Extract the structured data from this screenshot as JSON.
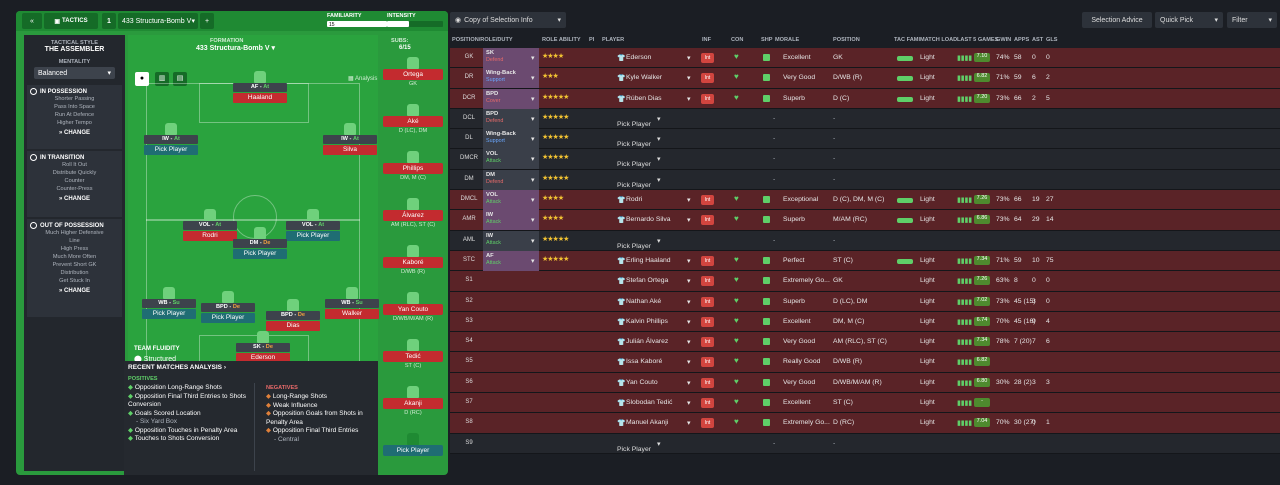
{
  "header": {
    "back": "«",
    "tab": "TACTICS",
    "slot": "1",
    "tactic_name": "433 Structura-Bomb V",
    "add": "+",
    "familiarity": "FAMILIARITY",
    "intensity": "INTENSITY",
    "fam_val": "15"
  },
  "style": {
    "title": "TACTICAL STYLE",
    "name": "THE ASSEMBLER",
    "mentality_label": "MENTALITY",
    "mentality": "Balanced"
  },
  "possession": {
    "title": "IN POSSESSION",
    "items": [
      "Shorter Passing",
      "Pass Into Space",
      "Run At Defence",
      "Higher Tempo"
    ],
    "change": "CHANGE"
  },
  "transition": {
    "title": "IN TRANSITION",
    "items": [
      "Roll It Out",
      "Distribute Quickly",
      "Counter",
      "Counter-Press"
    ],
    "change": "CHANGE"
  },
  "out": {
    "title": "OUT OF POSSESSION",
    "items": [
      "Much Higher Defensive",
      "Line",
      "High Press",
      "Much More Often",
      "Prevent Short GK",
      "Distribution",
      "Get Stuck In"
    ],
    "change": "CHANGE"
  },
  "formation": {
    "label": "FORMATION",
    "name": "433 Structura-Bomb V",
    "subs_label": "SUBS:",
    "subs": "6/15",
    "analysis": "Analysis"
  },
  "pitch": [
    {
      "role": "AF",
      "duty": "At",
      "name": "Haaland",
      "pick": false
    },
    {
      "role": "IW",
      "duty": "At",
      "name": "Pick Player",
      "pick": true
    },
    {
      "role": "IW",
      "duty": "At",
      "name": "Silva",
      "pick": false
    },
    {
      "role": "VOL",
      "duty": "At",
      "name": "Rodri",
      "pick": false
    },
    {
      "role": "VOL",
      "duty": "At",
      "name": "Pick Player",
      "pick": true
    },
    {
      "role": "DM",
      "duty": "De",
      "name": "Pick Player",
      "pick": true
    },
    {
      "role": "WB",
      "duty": "Su",
      "name": "Pick Player",
      "pick": true
    },
    {
      "role": "BPD",
      "duty": "De",
      "name": "Pick Player",
      "pick": true
    },
    {
      "role": "BPD",
      "duty": "De",
      "name": "Dias",
      "pick": false
    },
    {
      "role": "WB",
      "duty": "Su",
      "name": "Walker",
      "pick": false
    },
    {
      "role": "SK",
      "duty": "De",
      "name": "Ederson",
      "pick": false
    }
  ],
  "subs": [
    {
      "name": "Ortega",
      "pos": "GK"
    },
    {
      "name": "Aké",
      "pos": "D (LC), DM"
    },
    {
      "name": "Phillips",
      "pos": "DM, M (C)"
    },
    {
      "name": "Álvarez",
      "pos": "AM (RLC), ST (C)"
    },
    {
      "name": "Kaboré",
      "pos": "D/WB (R)"
    },
    {
      "name": "Yan Couto",
      "pos": "D/WB/M/AM (R)"
    },
    {
      "name": "Tedić",
      "pos": "ST (C)"
    },
    {
      "name": "Akanji",
      "pos": "D (RC)"
    },
    {
      "name": "Pick Player",
      "pos": ""
    }
  ],
  "fluidity": {
    "label": "TEAM FLUIDITY",
    "value": "Structured"
  },
  "analysis": {
    "title": "RECENT MATCHES ANALYSIS",
    "positives": "POSITIVES",
    "negatives": "NEGATIVES",
    "pos": [
      "Opposition Long-Range Shots",
      "Opposition Final Third Entries to Shots Conversion",
      "Goals Scored Location",
      "- Six Yard Box",
      "Opposition Touches in Penalty Area",
      "Touches to Shots Conversion"
    ],
    "neg": [
      "Long-Range Shots",
      "Weak Influence",
      "Opposition Goals from Shots in Penalty Area",
      "Opposition Final Third Entries",
      "- Central"
    ]
  },
  "toolbar": {
    "copy": "Copy of Selection Info",
    "advice": "Selection Advice",
    "quick": "Quick Pick",
    "filter": "Filter"
  },
  "columns": [
    "POSITION/ROLE/DUTY",
    "ROLE ABILITY",
    "PI",
    "PLAYER",
    "INF",
    "CON",
    "SHP",
    "MORALE",
    "POSITION",
    "TAC FAMI",
    "MATCH LOAD",
    "LAST 5 GAMES",
    "GWIN",
    "APPS",
    "AST",
    "GLS"
  ],
  "rows": [
    {
      "pos": "GK",
      "role": "SK",
      "duty": "Defend",
      "dc": "def",
      "stars": "★★★★",
      "player": "Ederson",
      "morale": "Excellent",
      "position": "GK",
      "load": "Light",
      "rating": "7.10",
      "gwin": "74%",
      "apps": "58",
      "ast": "0",
      "gls": "0",
      "c": "red"
    },
    {
      "pos": "DR",
      "role": "Wing-Back",
      "duty": "Support",
      "dc": "sup",
      "stars": "★★★",
      "player": "Kyle Walker",
      "morale": "Very Good",
      "position": "D/WB (R)",
      "load": "Light",
      "rating": "6.82",
      "gwin": "71%",
      "apps": "59",
      "ast": "6",
      "gls": "2",
      "c": "red"
    },
    {
      "pos": "DCR",
      "role": "BPD",
      "duty": "Cover",
      "dc": "def",
      "stars": "★★★★★",
      "player": "Rúben Dias",
      "morale": "Superb",
      "position": "D (C)",
      "load": "Light",
      "rating": "7.20",
      "gwin": "73%",
      "apps": "66",
      "ast": "2",
      "gls": "5",
      "c": "red"
    },
    {
      "pos": "DCL",
      "role": "BPD",
      "duty": "Defend",
      "dc": "def",
      "stars": "★★★★★",
      "player": "Pick Player",
      "morale": "-",
      "position": "-",
      "load": "",
      "rating": "",
      "gwin": "",
      "apps": "",
      "ast": "",
      "gls": "",
      "c": "dark",
      "pick": true
    },
    {
      "pos": "DL",
      "role": "Wing-Back",
      "duty": "Support",
      "dc": "sup",
      "stars": "★★★★★",
      "player": "Pick Player",
      "morale": "-",
      "position": "-",
      "load": "",
      "rating": "",
      "gwin": "",
      "apps": "",
      "ast": "",
      "gls": "",
      "c": "dark",
      "pick": true
    },
    {
      "pos": "DMCR",
      "role": "VOL",
      "duty": "Attack",
      "dc": "att",
      "stars": "★★★★★",
      "player": "Pick Player",
      "morale": "-",
      "position": "-",
      "load": "",
      "rating": "",
      "gwin": "",
      "apps": "",
      "ast": "",
      "gls": "",
      "c": "dark",
      "pick": true
    },
    {
      "pos": "DM",
      "role": "DM",
      "duty": "Defend",
      "dc": "def",
      "stars": "★★★★★",
      "player": "Pick Player",
      "morale": "-",
      "position": "-",
      "load": "",
      "rating": "",
      "gwin": "",
      "apps": "",
      "ast": "",
      "gls": "",
      "c": "dark",
      "pick": true
    },
    {
      "pos": "DMCL",
      "role": "VOL",
      "duty": "Attack",
      "dc": "att",
      "stars": "★★★★",
      "player": "Rodri",
      "morale": "Exceptional",
      "position": "D (C), DM, M (C)",
      "load": "Light",
      "rating": "7.26",
      "gwin": "73%",
      "apps": "66",
      "ast": "19",
      "gls": "27",
      "c": "red"
    },
    {
      "pos": "AMR",
      "role": "IW",
      "duty": "Attack",
      "dc": "att",
      "stars": "★★★★",
      "player": "Bernardo Silva",
      "morale": "Superb",
      "position": "M/AM (RC)",
      "load": "Light",
      "rating": "6.86",
      "gwin": "73%",
      "apps": "64",
      "ast": "29",
      "gls": "14",
      "c": "red"
    },
    {
      "pos": "AML",
      "role": "IW",
      "duty": "Attack",
      "dc": "att",
      "stars": "★★★★★",
      "player": "Pick Player",
      "morale": "-",
      "position": "-",
      "load": "",
      "rating": "",
      "gwin": "",
      "apps": "",
      "ast": "",
      "gls": "",
      "c": "dark",
      "pick": true
    },
    {
      "pos": "STC",
      "role": "AF",
      "duty": "Attack",
      "dc": "att",
      "stars": "★★★★★",
      "player": "Erling Haaland",
      "morale": "Perfect",
      "position": "ST (C)",
      "load": "Light",
      "rating": "7.34",
      "gwin": "71%",
      "apps": "59",
      "ast": "10",
      "gls": "75",
      "c": "red"
    },
    {
      "pos": "S1",
      "role": "",
      "duty": "",
      "dc": "",
      "stars": "",
      "player": "Stefan Ortega",
      "morale": "Extremely Go...",
      "position": "GK",
      "load": "Light",
      "rating": "7.26",
      "gwin": "63%",
      "apps": "8",
      "ast": "0",
      "gls": "0",
      "c": "red"
    },
    {
      "pos": "S2",
      "role": "",
      "duty": "",
      "dc": "",
      "stars": "",
      "player": "Nathan Aké",
      "morale": "Superb",
      "position": "D (LC), DM",
      "load": "Light",
      "rating": "7.02",
      "gwin": "73%",
      "apps": "45 (15)",
      "ast": "3",
      "gls": "0",
      "c": "red"
    },
    {
      "pos": "S3",
      "role": "",
      "duty": "",
      "dc": "",
      "stars": "",
      "player": "Kalvin Phillips",
      "morale": "Excellent",
      "position": "DM, M (C)",
      "load": "Light",
      "rating": "6.74",
      "gwin": "70%",
      "apps": "45 (16)",
      "ast": "9",
      "gls": "4",
      "c": "red"
    },
    {
      "pos": "S4",
      "role": "",
      "duty": "",
      "dc": "",
      "stars": "",
      "player": "Julián Álvarez",
      "morale": "Very Good",
      "position": "AM (RLC), ST (C)",
      "load": "Light",
      "rating": "7.34",
      "gwin": "78%",
      "apps": "7 (20)",
      "ast": "7",
      "gls": "6",
      "c": "red"
    },
    {
      "pos": "S5",
      "role": "",
      "duty": "",
      "dc": "",
      "stars": "",
      "player": "Issa Kaboré",
      "morale": "Really Good",
      "position": "D/WB (R)",
      "load": "Light",
      "rating": "6.82",
      "gwin": "",
      "apps": "",
      "ast": "",
      "gls": "",
      "c": "red"
    },
    {
      "pos": "S6",
      "role": "",
      "duty": "",
      "dc": "",
      "stars": "",
      "player": "Yan Couto",
      "morale": "Very Good",
      "position": "D/WB/M/AM (R)",
      "load": "Light",
      "rating": "6.80",
      "gwin": "30%",
      "apps": "28 (2)",
      "ast": "3",
      "gls": "3",
      "c": "red"
    },
    {
      "pos": "S7",
      "role": "",
      "duty": "",
      "dc": "",
      "stars": "",
      "player": "Slobodan Tedić",
      "morale": "Excellent",
      "position": "ST (C)",
      "load": "Light",
      "rating": "-",
      "gwin": "",
      "apps": "",
      "ast": "",
      "gls": "",
      "c": "red"
    },
    {
      "pos": "S8",
      "role": "",
      "duty": "",
      "dc": "",
      "stars": "",
      "player": "Manuel Akanji",
      "morale": "Extremely Go...",
      "position": "D (RC)",
      "load": "Light",
      "rating": "7.04",
      "gwin": "70%",
      "apps": "30 (27)",
      "ast": "0",
      "gls": "1",
      "c": "red"
    },
    {
      "pos": "S9",
      "role": "",
      "duty": "",
      "dc": "",
      "stars": "",
      "player": "Pick Player",
      "morale": "-",
      "position": "-",
      "load": "",
      "rating": "",
      "gwin": "",
      "apps": "",
      "ast": "",
      "gls": "",
      "c": "dark",
      "pick": true
    }
  ]
}
